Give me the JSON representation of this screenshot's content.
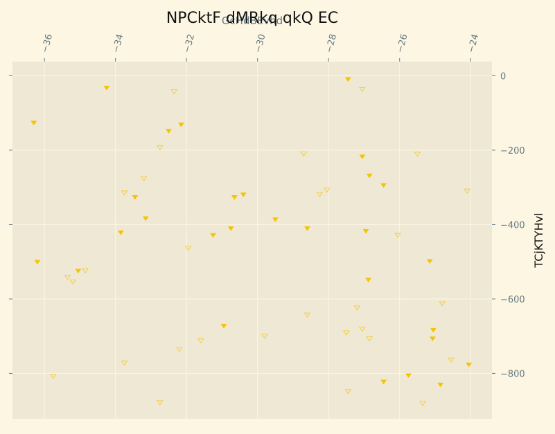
{
  "chart_data": {
    "type": "scatter",
    "title": "NPCktF dMRkq qkQ EC",
    "xlabel": "GcHdBEvhd",
    "ylabel": "TCjKTYHvl",
    "xlim": [
      -36.9,
      -23.4
    ],
    "ylim": [
      -922,
      38
    ],
    "x_ticks": [
      -36,
      -34,
      -32,
      -30,
      -28,
      -26,
      -24
    ],
    "x_tick_labels": [
      "−36",
      "−34",
      "−32",
      "−30",
      "−28",
      "−26",
      "−24"
    ],
    "y_ticks": [
      0,
      -200,
      -400,
      -600,
      -800
    ],
    "y_tick_labels": [
      "0",
      "−200",
      "−400",
      "−600",
      "−800"
    ],
    "x_axis_position": "top",
    "y_axis_position": "right",
    "grid": true,
    "colors": {
      "background": "#fdf6e3",
      "plot_area": "#eee8d5",
      "grid": "#fdf6e3",
      "tick_text": "#657b83",
      "marker": "#f5c400"
    },
    "series": [
      {
        "marker": "filled-down-triangle",
        "points": [
          [
            -36.3,
            -126
          ],
          [
            -36.2,
            -500
          ],
          [
            -35.05,
            -524
          ],
          [
            -34.25,
            -32
          ],
          [
            -33.85,
            -421
          ],
          [
            -33.45,
            -326
          ],
          [
            -33.15,
            -383
          ],
          [
            -32.5,
            -148
          ],
          [
            -32.15,
            -131
          ],
          [
            -31.25,
            -428
          ],
          [
            -30.95,
            -672
          ],
          [
            -30.75,
            -410
          ],
          [
            -30.65,
            -326
          ],
          [
            -30.4,
            -319
          ],
          [
            -29.5,
            -386
          ],
          [
            -28.6,
            -410
          ],
          [
            -27.45,
            -9
          ],
          [
            -27.05,
            -217
          ],
          [
            -26.95,
            -417
          ],
          [
            -26.85,
            -268
          ],
          [
            -26.88,
            -548
          ],
          [
            -26.45,
            -294
          ],
          [
            -26.45,
            -822
          ],
          [
            -25.75,
            -805
          ],
          [
            -25.15,
            -498
          ],
          [
            -25.05,
            -683
          ],
          [
            -25.07,
            -706
          ],
          [
            -24.85,
            -830
          ],
          [
            -24.05,
            -776
          ]
        ]
      },
      {
        "marker": "hollow-down-triangle",
        "points": [
          [
            -35.75,
            -807
          ],
          [
            -35.35,
            -541
          ],
          [
            -35.2,
            -553
          ],
          [
            -34.85,
            -523
          ],
          [
            -33.75,
            -314
          ],
          [
            -33.75,
            -771
          ],
          [
            -33.2,
            -275
          ],
          [
            -32.75,
            -192
          ],
          [
            -32.75,
            -878
          ],
          [
            -32.35,
            -42
          ],
          [
            -32.2,
            -735
          ],
          [
            -31.95,
            -463
          ],
          [
            -31.6,
            -711
          ],
          [
            -29.8,
            -699
          ],
          [
            -28.7,
            -209
          ],
          [
            -28.6,
            -642
          ],
          [
            -28.25,
            -318
          ],
          [
            -28.05,
            -306
          ],
          [
            -27.5,
            -690
          ],
          [
            -27.45,
            -848
          ],
          [
            -27.2,
            -623
          ],
          [
            -27.05,
            -36
          ],
          [
            -27.05,
            -680
          ],
          [
            -26.85,
            -706
          ],
          [
            -26.05,
            -428
          ],
          [
            -25.5,
            -210
          ],
          [
            -25.35,
            -880
          ],
          [
            -24.8,
            -612
          ],
          [
            -24.55,
            -763
          ],
          [
            -24.1,
            -309
          ]
        ]
      }
    ]
  }
}
